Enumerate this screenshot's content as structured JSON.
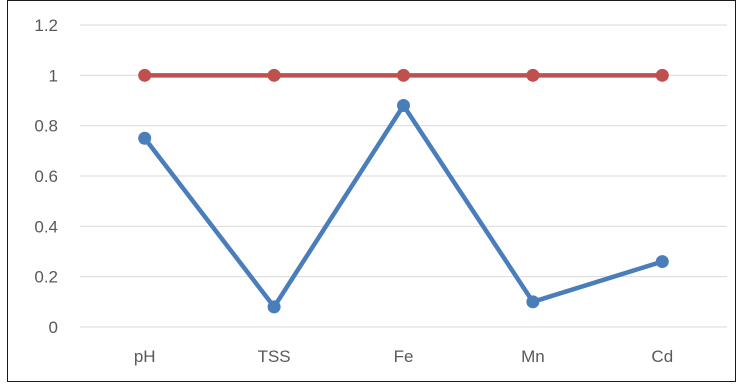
{
  "chart_data": {
    "type": "line",
    "categories": [
      "pH",
      "TSS",
      "Fe",
      "Mn",
      "Cd"
    ],
    "series": [
      {
        "values": [
          0.75,
          0.08,
          0.88,
          0.1,
          0.26
        ],
        "color": "#4a7ebb"
      },
      {
        "values": [
          1,
          1,
          1,
          1,
          1
        ],
        "color": "#c0504d"
      }
    ],
    "yticks": [
      "0",
      "0.2",
      "0.4",
      "0.6",
      "0.8",
      "1",
      "1.2"
    ],
    "ylim": [
      0,
      1.2
    ],
    "grid": true,
    "legend": "none",
    "gridline_color": "#d9d9d9",
    "axis_label_color": "#595959"
  }
}
